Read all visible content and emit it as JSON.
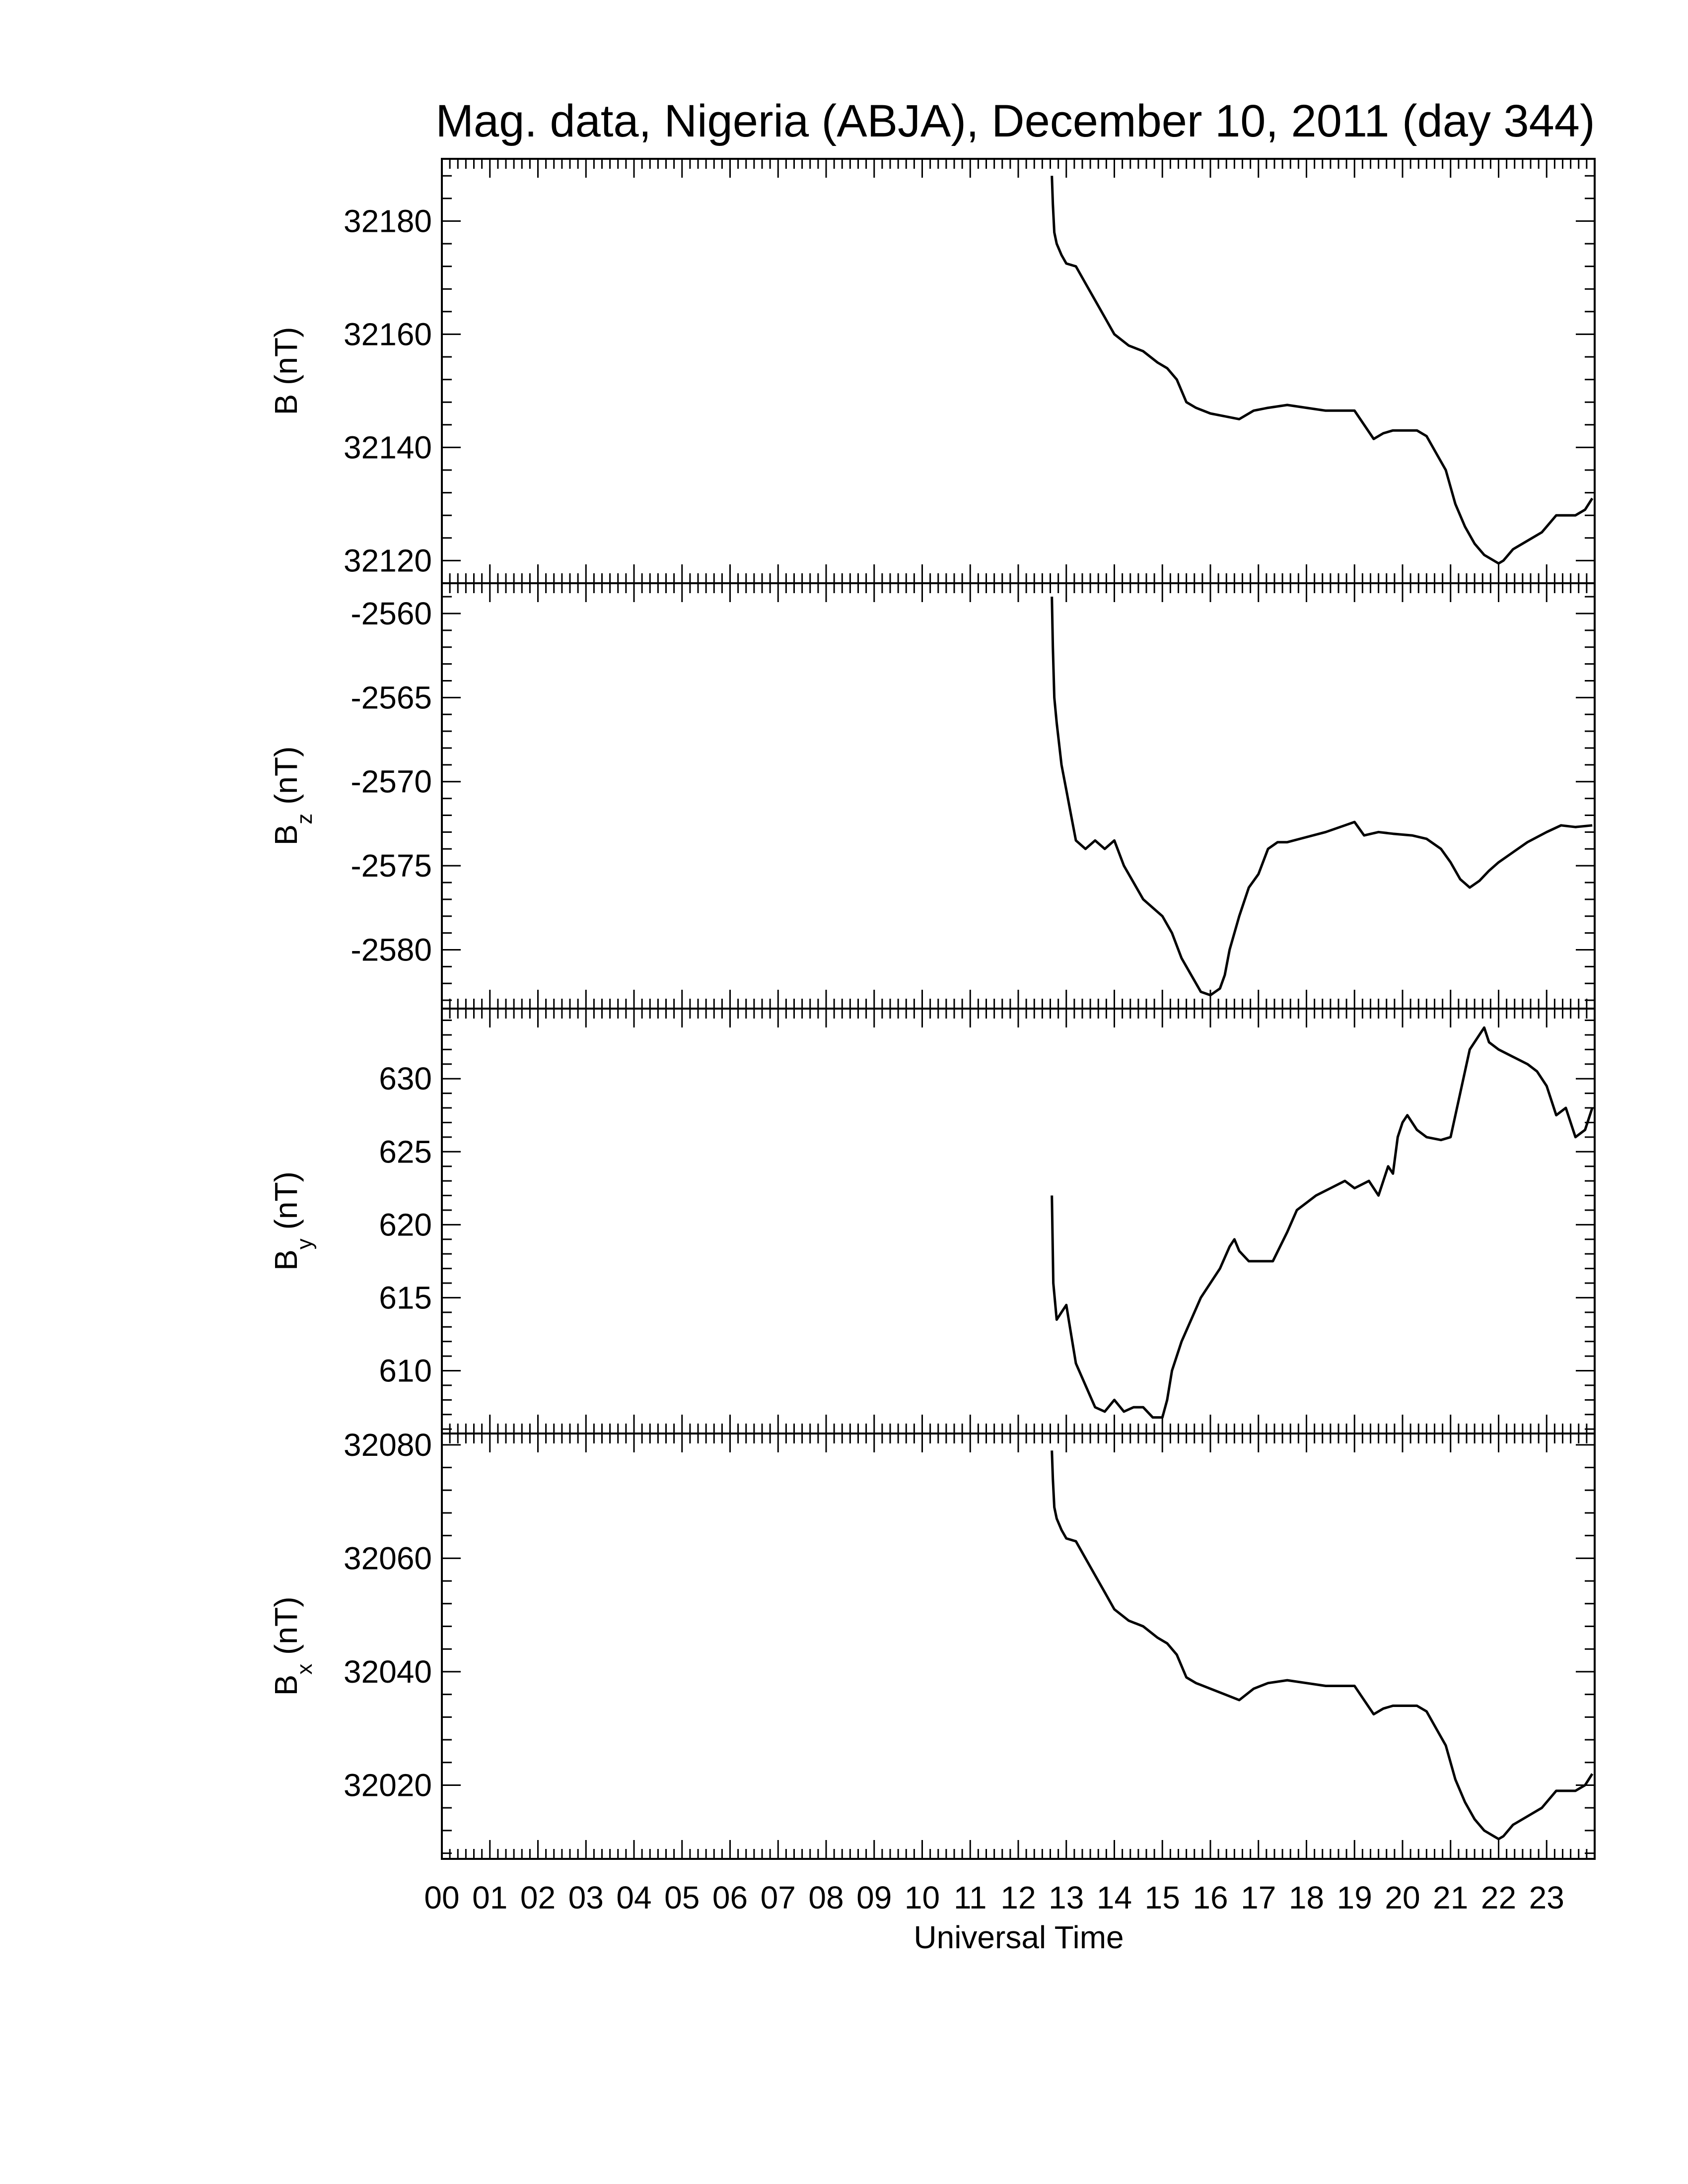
{
  "title": "Mag. data, Nigeria (ABJA), December 10, 2011 (day 344)",
  "xlabel": "Universal Time",
  "chart_data": [
    {
      "type": "line",
      "ylabel_main": "B",
      "ylabel_sub": "",
      "ylabel_unit": " (nT)",
      "ylim": [
        32116,
        32191
      ],
      "yticks": [
        32120,
        32140,
        32160,
        32180
      ],
      "ytick_labels": [
        "32120",
        "32140",
        "32160",
        "32180"
      ],
      "x": [
        12.7,
        12.72,
        12.75,
        12.8,
        12.9,
        13.0,
        13.2,
        13.4,
        13.6,
        13.8,
        14.0,
        14.3,
        14.6,
        14.9,
        15.1,
        15.3,
        15.5,
        15.7,
        16.0,
        16.3,
        16.6,
        16.9,
        17.2,
        17.6,
        18.0,
        18.4,
        18.7,
        19.0,
        19.2,
        19.4,
        19.6,
        19.8,
        20.0,
        20.3,
        20.5,
        20.7,
        20.9,
        21.1,
        21.3,
        21.5,
        21.7,
        21.9,
        22.0,
        22.1,
        22.3,
        22.5,
        22.7,
        22.9,
        23.0,
        23.2,
        23.4,
        23.6,
        23.8,
        23.95
      ],
      "values": [
        32188,
        32183,
        32178,
        32176,
        32174,
        32172.5,
        32172,
        32169,
        32166,
        32163,
        32160,
        32158,
        32157,
        32155,
        32154,
        32152,
        32148,
        32147,
        32146,
        32145.5,
        32145,
        32146.5,
        32147,
        32147.5,
        32147,
        32146.5,
        32146.5,
        32146.5,
        32144,
        32141.5,
        32142.5,
        32143,
        32143,
        32143,
        32142,
        32139,
        32136,
        32130,
        32126,
        32123,
        32121,
        32120,
        32119.5,
        32120,
        32122,
        32123,
        32124,
        32125,
        32126,
        32128,
        32128,
        32128,
        32129,
        32131
      ]
    },
    {
      "type": "line",
      "ylabel_main": "B",
      "ylabel_sub": "z",
      "ylabel_unit": " (nT)",
      "ylim": [
        -2583.5,
        -2558.2
      ],
      "yticks": [
        -2580,
        -2575,
        -2570,
        -2565,
        -2560
      ],
      "ytick_labels": [
        "-2580",
        "-2575",
        "-2570",
        "-2565",
        "-2560"
      ],
      "x": [
        12.7,
        12.72,
        12.75,
        12.8,
        12.9,
        13.0,
        13.1,
        13.2,
        13.4,
        13.6,
        13.8,
        14.0,
        14.2,
        14.4,
        14.6,
        14.8,
        15.0,
        15.2,
        15.4,
        15.6,
        15.8,
        16.0,
        16.2,
        16.3,
        16.4,
        16.6,
        16.8,
        17.0,
        17.2,
        17.4,
        17.6,
        18.0,
        18.4,
        18.8,
        19.0,
        19.2,
        19.5,
        19.8,
        20.2,
        20.5,
        20.8,
        21.0,
        21.2,
        21.4,
        21.6,
        21.8,
        22.0,
        22.3,
        22.6,
        23.0,
        23.3,
        23.6,
        23.95
      ],
      "values": [
        -2559,
        -2562,
        -2565,
        -2566.5,
        -2569,
        -2570.5,
        -2572,
        -2573.5,
        -2574,
        -2573.5,
        -2574,
        -2573.5,
        -2575,
        -2576,
        -2577,
        -2577.5,
        -2578,
        -2579,
        -2580.5,
        -2581.5,
        -2582.5,
        -2582.7,
        -2582.3,
        -2581.5,
        -2580,
        -2578,
        -2576.3,
        -2575.5,
        -2574,
        -2573.6,
        -2573.6,
        -2573.3,
        -2573.0,
        -2572.6,
        -2572.4,
        -2573.2,
        -2573.0,
        -2573.1,
        -2573.2,
        -2573.4,
        -2574,
        -2574.8,
        -2575.8,
        -2576.3,
        -2575.9,
        -2575.3,
        -2574.8,
        -2574.2,
        -2573.6,
        -2573.0,
        -2572.6,
        -2572.7,
        -2572.6
      ]
    },
    {
      "type": "line",
      "ylabel_main": "B",
      "ylabel_sub": "y",
      "ylabel_unit": " (nT)",
      "ylim": [
        605.7,
        634.8
      ],
      "yticks": [
        610,
        615,
        620,
        625,
        630
      ],
      "ytick_labels": [
        "610",
        "615",
        "620",
        "625",
        "630"
      ],
      "x": [
        12.7,
        12.73,
        12.8,
        12.9,
        13.0,
        13.1,
        13.2,
        13.4,
        13.6,
        13.8,
        14.0,
        14.2,
        14.4,
        14.6,
        14.8,
        15.0,
        15.1,
        15.2,
        15.4,
        15.6,
        15.8,
        16.0,
        16.2,
        16.4,
        16.5,
        16.6,
        16.8,
        17.0,
        17.3,
        17.6,
        17.8,
        18.0,
        18.2,
        18.5,
        18.8,
        19.0,
        19.3,
        19.5,
        19.7,
        19.8,
        19.9,
        20.0,
        20.1,
        20.3,
        20.5,
        20.8,
        21.0,
        21.2,
        21.4,
        21.6,
        21.7,
        21.8,
        22.0,
        22.3,
        22.6,
        22.8,
        23.0,
        23.2,
        23.4,
        23.6,
        23.8,
        23.95
      ],
      "values": [
        622,
        616,
        613.5,
        614,
        614.5,
        612.5,
        610.5,
        609,
        607.5,
        607.2,
        608,
        607.2,
        607.5,
        607.5,
        606.8,
        606.8,
        608,
        610,
        612,
        613.5,
        615,
        616,
        617,
        618.5,
        619,
        618.2,
        617.5,
        617.5,
        617.5,
        619.5,
        621,
        621.5,
        622,
        622.5,
        623,
        622.5,
        623,
        622,
        624,
        623.5,
        626,
        627,
        627.5,
        626.5,
        626,
        625.8,
        626,
        629,
        632,
        633,
        633.5,
        632.5,
        632,
        631.5,
        631,
        630.5,
        629.5,
        627.5,
        628,
        626,
        626.5,
        628
      ]
    },
    {
      "type": "line",
      "ylabel_main": "B",
      "ylabel_sub": "x",
      "ylabel_unit": " (nT)",
      "ylim": [
        32007,
        32082
      ],
      "yticks": [
        32020,
        32040,
        32060,
        32080
      ],
      "ytick_labels": [
        "32020",
        "32040",
        "32060",
        "32080"
      ],
      "x": [
        12.7,
        12.72,
        12.75,
        12.8,
        12.9,
        13.0,
        13.2,
        13.4,
        13.6,
        13.8,
        14.0,
        14.3,
        14.6,
        14.9,
        15.1,
        15.3,
        15.5,
        15.7,
        16.0,
        16.3,
        16.6,
        16.9,
        17.2,
        17.6,
        18.0,
        18.4,
        18.7,
        19.0,
        19.2,
        19.4,
        19.6,
        19.8,
        20.0,
        20.3,
        20.5,
        20.7,
        20.9,
        21.1,
        21.3,
        21.5,
        21.7,
        21.9,
        22.0,
        22.1,
        22.3,
        22.5,
        22.7,
        22.9,
        23.0,
        23.2,
        23.4,
        23.6,
        23.8,
        23.95
      ],
      "values": [
        32079,
        32074,
        32069,
        32067,
        32065,
        32063.5,
        32063,
        32060,
        32057,
        32054,
        32051,
        32049,
        32048,
        32046,
        32045,
        32043,
        32039,
        32038,
        32037,
        32036,
        32035,
        32037,
        32038,
        32038.5,
        32038,
        32037.5,
        32037.5,
        32037.5,
        32035,
        32032.5,
        32033.5,
        32034,
        32034,
        32034,
        32033,
        32030,
        32027,
        32021,
        32017,
        32014,
        32012,
        32011,
        32010.5,
        32011,
        32013,
        32014,
        32015,
        32016,
        32017,
        32019,
        32019,
        32019,
        32020,
        32022
      ]
    }
  ],
  "x_axis": {
    "xlim": [
      0,
      24
    ],
    "ticks": [
      0,
      1,
      2,
      3,
      4,
      5,
      6,
      7,
      8,
      9,
      10,
      11,
      12,
      13,
      14,
      15,
      16,
      17,
      18,
      19,
      20,
      21,
      22,
      23
    ],
    "tick_labels": [
      "00",
      "01",
      "02",
      "03",
      "04",
      "05",
      "06",
      "07",
      "08",
      "09",
      "10",
      "11",
      "12",
      "13",
      "14",
      "15",
      "16",
      "17",
      "18",
      "19",
      "20",
      "21",
      "22",
      "23"
    ]
  }
}
